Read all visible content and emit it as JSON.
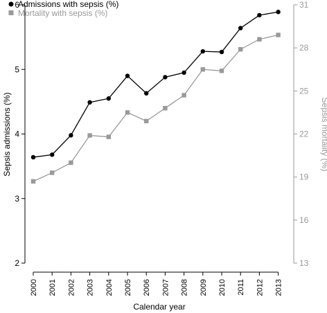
{
  "chart_data": {
    "type": "line",
    "x": [
      "2000",
      "2001",
      "2002",
      "2003",
      "2004",
      "2005",
      "2006",
      "2007",
      "2008",
      "2009",
      "2010",
      "2011",
      "2012",
      "2013"
    ],
    "xlabel": "Calendar year",
    "y_left": {
      "label": "Sepsis admissions (%)",
      "ylim": [
        2,
        6
      ],
      "ticks": [
        "2",
        "3",
        "4",
        "5",
        "6"
      ]
    },
    "y_right": {
      "label": "Sepsis mortality (%)",
      "ylim": [
        13,
        31
      ],
      "ticks": [
        "13",
        "16",
        "19",
        "22",
        "25",
        "28",
        "31"
      ]
    },
    "series": [
      {
        "name": "Admissions with sepsis (%)",
        "axis": "left",
        "marker": "circle",
        "color": "#000000",
        "values": [
          3.64,
          3.68,
          3.98,
          4.49,
          4.55,
          4.9,
          4.63,
          4.88,
          4.95,
          5.28,
          5.27,
          5.64,
          5.84,
          5.89
        ]
      },
      {
        "name": "Mortality with sepsis (%)",
        "axis": "right",
        "marker": "square",
        "color": "#999999",
        "values": [
          18.7,
          19.3,
          20.0,
          21.9,
          21.8,
          23.5,
          22.9,
          23.8,
          24.7,
          26.5,
          26.4,
          27.9,
          28.6,
          28.9
        ]
      }
    ],
    "legend": {
      "position": "top-left",
      "entries": [
        "Admissions with sepsis (%)",
        "Mortality with sepsis (%)"
      ]
    }
  }
}
